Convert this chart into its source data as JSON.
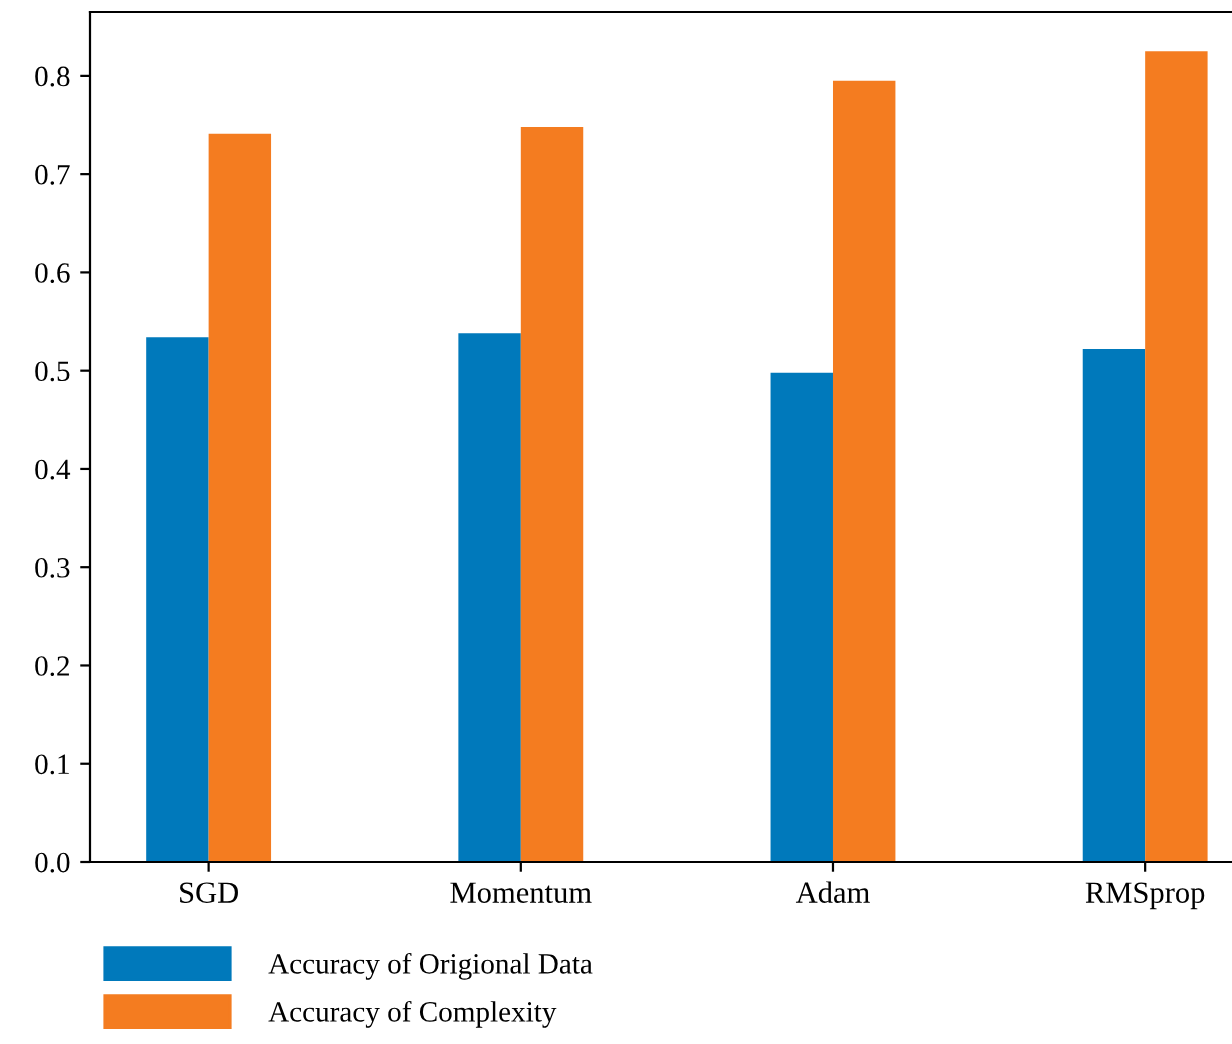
{
  "chart_data": {
    "type": "bar",
    "categories": [
      "SGD",
      "Momentum",
      "Adam",
      "RMSprop"
    ],
    "series": [
      {
        "name": "Accuracy of Origional Data",
        "color": "#0079bb",
        "values": [
          0.534,
          0.538,
          0.498,
          0.522
        ]
      },
      {
        "name": "Accuracy of Complexity",
        "color": "#f47c20",
        "values": [
          0.741,
          0.748,
          0.795,
          0.825
        ]
      }
    ],
    "ylim": [
      0,
      0.865
    ],
    "yticks": [
      {
        "value": 0,
        "label": "0.0"
      },
      0.1,
      0.2,
      0.3,
      0.4,
      0.5,
      0.6,
      0.7,
      0.8
    ],
    "grid": false,
    "legend": "bottom left"
  }
}
